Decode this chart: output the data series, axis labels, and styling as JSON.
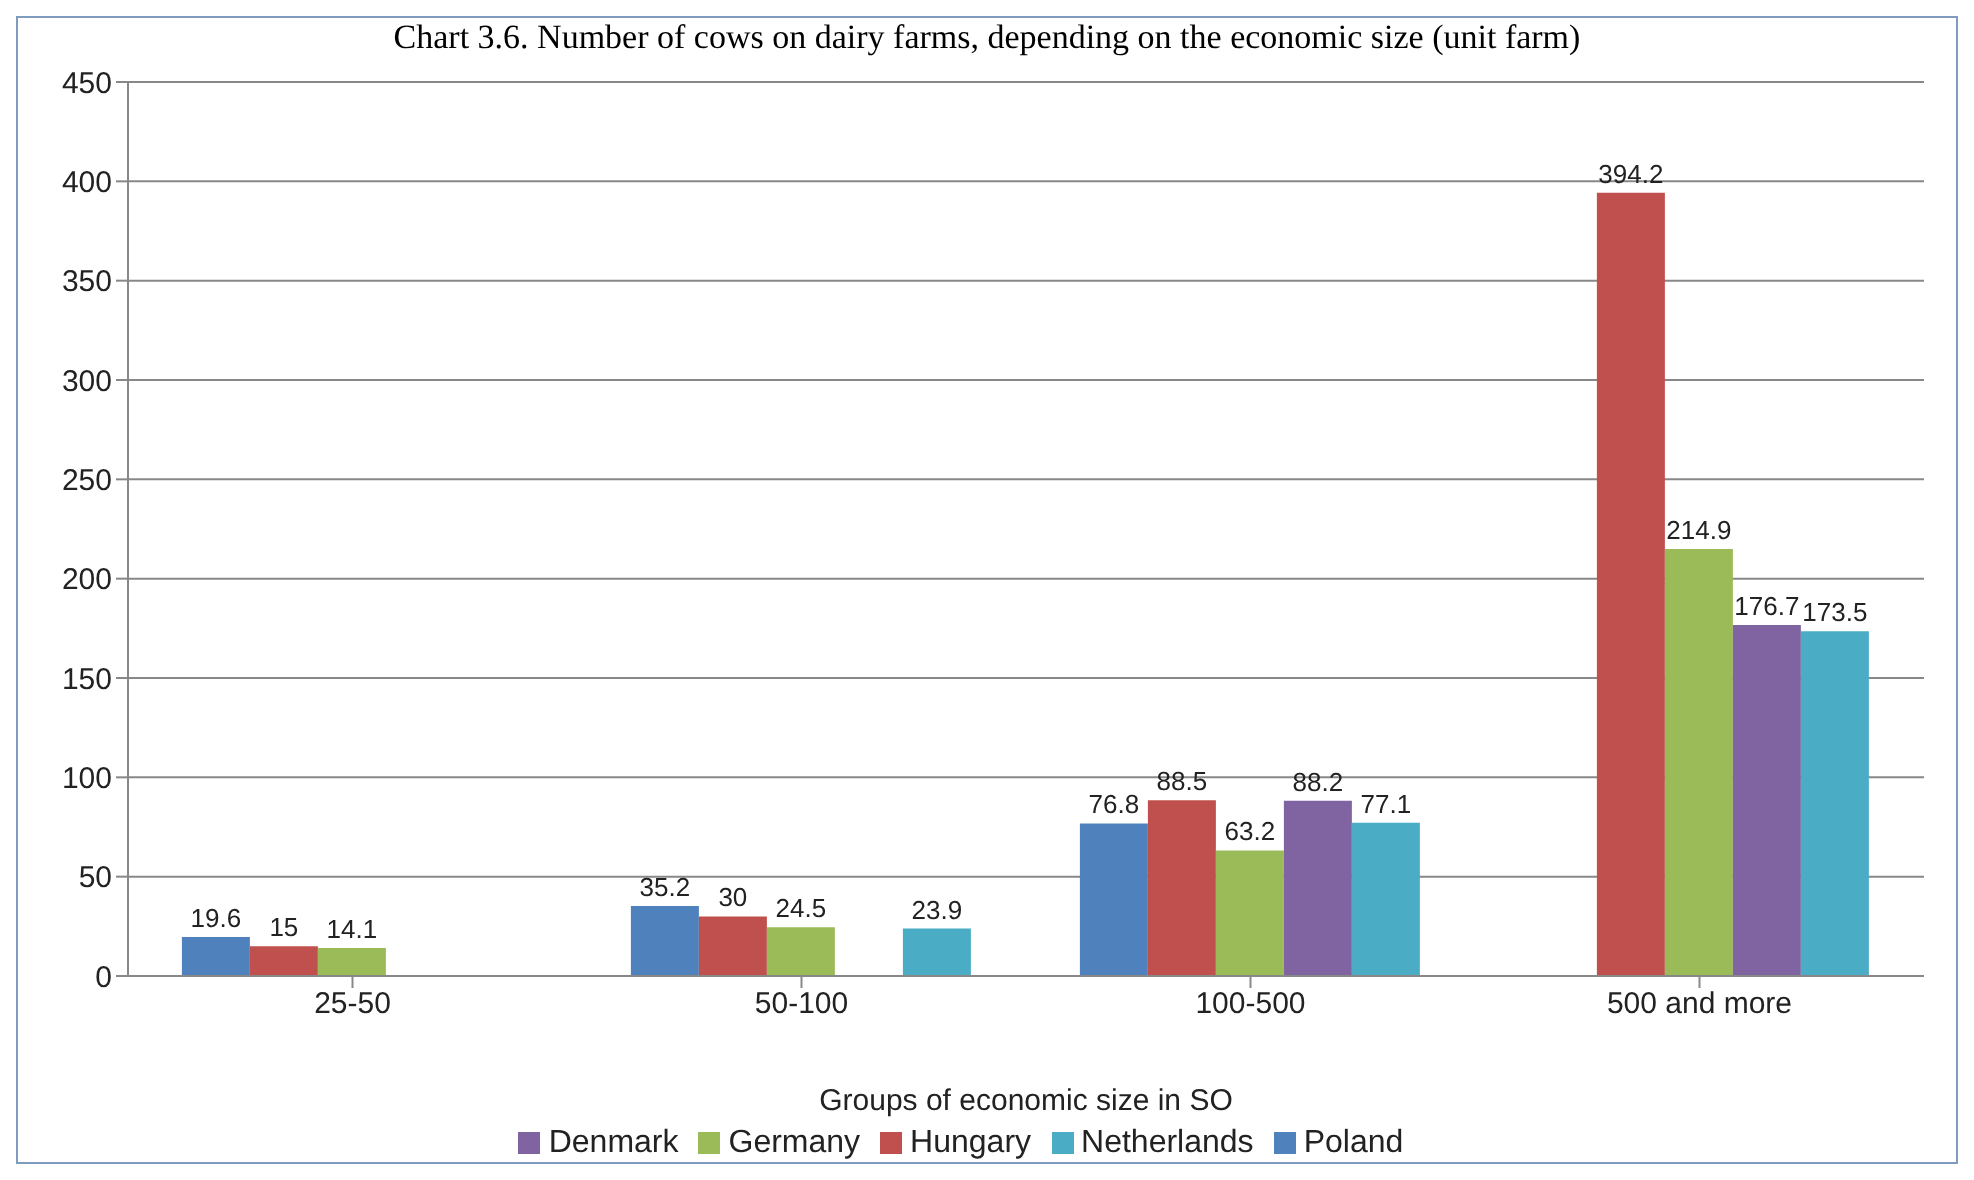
{
  "chart_data": {
    "type": "bar",
    "title": "Chart 3.6. Number of cows on dairy farms, depending on the economic size (unit farm)",
    "xlabel": "Groups of economic size in SO",
    "categories": [
      "25-50",
      "50-100",
      "100-500",
      "500 and more"
    ],
    "series": [
      {
        "name": "Poland",
        "color": "#4f81bd",
        "values": [
          19.6,
          35.2,
          76.8,
          null
        ]
      },
      {
        "name": "Hungary",
        "color": "#c0504d",
        "values": [
          15,
          30,
          88.5,
          394.2
        ]
      },
      {
        "name": "Germany",
        "color": "#9bbb59",
        "values": [
          14.1,
          24.5,
          63.2,
          214.9
        ]
      },
      {
        "name": "Denmark",
        "color": "#8064a2",
        "values": [
          null,
          null,
          88.2,
          176.7
        ]
      },
      {
        "name": "Netherlands",
        "color": "#4bacc6",
        "values": [
          null,
          23.9,
          77.1,
          173.5
        ]
      }
    ],
    "ylim": [
      0,
      450
    ],
    "yticks": [
      0,
      50,
      100,
      150,
      200,
      250,
      300,
      350,
      400,
      450
    ],
    "grid": "y",
    "data_labels": true,
    "legend": "bottom"
  }
}
